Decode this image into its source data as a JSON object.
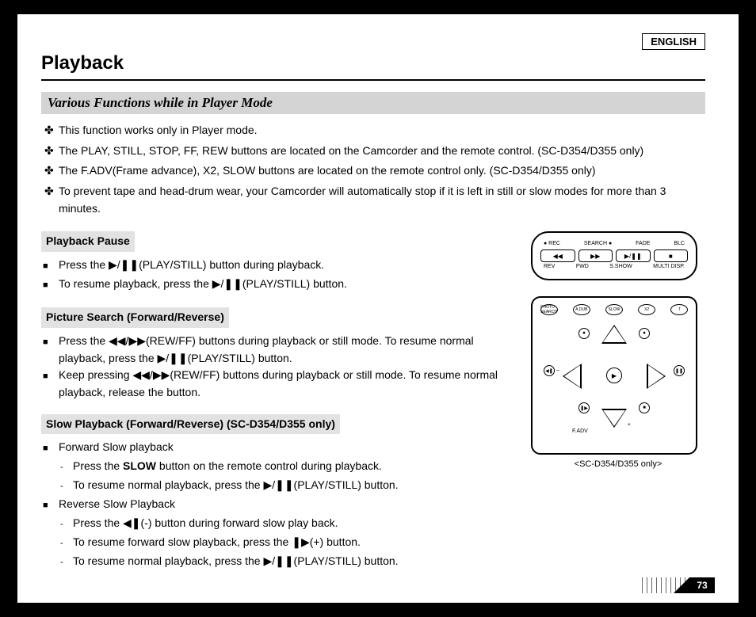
{
  "language_label": "ENGLISH",
  "title": "Playback",
  "section_header": "Various Functions while in Player Mode",
  "intro": [
    "This function works only in Player mode.",
    "The PLAY, STILL, STOP, FF, REW buttons are located on the Camcorder and the remote control. (SC-D354/D355 only)",
    "The F.ADV(Frame advance), X2, SLOW buttons are located on the remote control only. (SC-D354/D355 only)",
    "To prevent tape and head-drum wear, your Camcorder will automatically stop if it is left in still or slow modes for more than 3 minutes."
  ],
  "pause": {
    "header": "Playback Pause",
    "lines": [
      "Press the ▶/❚❚(PLAY/STILL) button during playback.",
      "To resume playback, press the ▶/❚❚(PLAY/STILL) button."
    ]
  },
  "search": {
    "header": "Picture Search (Forward/Reverse)",
    "lines": [
      "Press the ◀◀/▶▶(REW/FF) buttons during playback or still mode. To resume normal playback, press the ▶/❚❚(PLAY/STILL) button.",
      "Keep pressing ◀◀/▶▶(REW/FF) buttons during playback or still mode. To resume normal playback, release the button."
    ]
  },
  "slow": {
    "header": "Slow Playback (Forward/Reverse) (SC-D354/D355 only)",
    "fwd_label": "Forward Slow playback",
    "fwd": [
      "Press the SLOW button on the remote control during playback.",
      "To resume normal playback, press the ▶/❚❚(PLAY/STILL) button."
    ],
    "rev_label": "Reverse Slow Playback",
    "rev": [
      "Press the ◀❚(-) button during forward slow play back.",
      "To resume forward slow playback, press the ❚▶(+) button.",
      "To resume normal playback, press the ▶/❚❚(PLAY/STILL) button."
    ]
  },
  "remote_caption": "<SC-D354/D355 only>",
  "panel": {
    "top": [
      "● REC",
      "SEARCH ●",
      "FADE",
      "BLC"
    ],
    "btns": [
      "◀◀",
      "▶▶",
      "▶/❚❚",
      "■"
    ],
    "bottom": [
      "REV",
      "FWD",
      "S.SHOW",
      "MULTI DISP."
    ]
  },
  "remote_top": [
    "PHOTO SEARCH",
    "A.DUB",
    "SLOW",
    "X2",
    "T"
  ],
  "page_number": "73",
  "bullet_symbol": "✤",
  "square_symbol": "■",
  "dash_symbol": "-",
  "slow_word": "SLOW",
  "slow_prefix": "Press the ",
  "slow_suffix": " button on the remote control during playback."
}
